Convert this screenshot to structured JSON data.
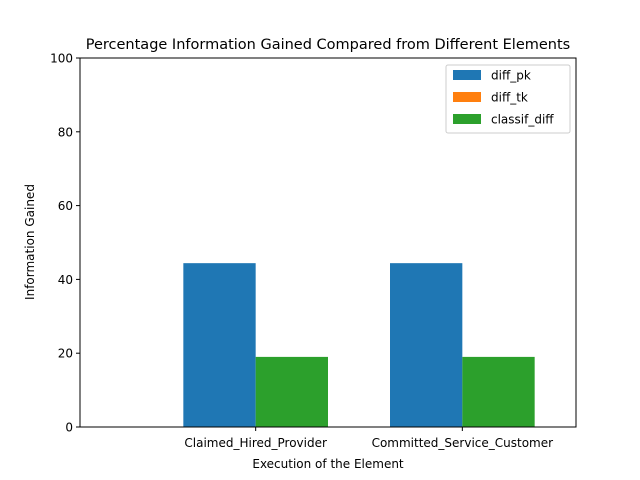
{
  "chart_data": {
    "type": "bar",
    "title": "Percentage Information Gained Compared from Different Elements",
    "xlabel": "Execution of the Element",
    "ylabel": "Information Gained",
    "categories": [
      "Claimed_Hired_Provider",
      "Committed_Service_Customer"
    ],
    "series": [
      {
        "name": "diff_pk",
        "values": [
          44.4,
          44.4
        ],
        "color": "#1f77b4"
      },
      {
        "name": "diff_tk",
        "values": [
          0,
          0
        ],
        "color": "#ff7f0e"
      },
      {
        "name": "classif_diff",
        "values": [
          19.0,
          19.0
        ],
        "color": "#2ca02c"
      }
    ],
    "ylim": [
      0,
      100
    ],
    "yticks": [
      0,
      20,
      40,
      60,
      80,
      100
    ],
    "grid": false,
    "legend_position": "top-right"
  }
}
